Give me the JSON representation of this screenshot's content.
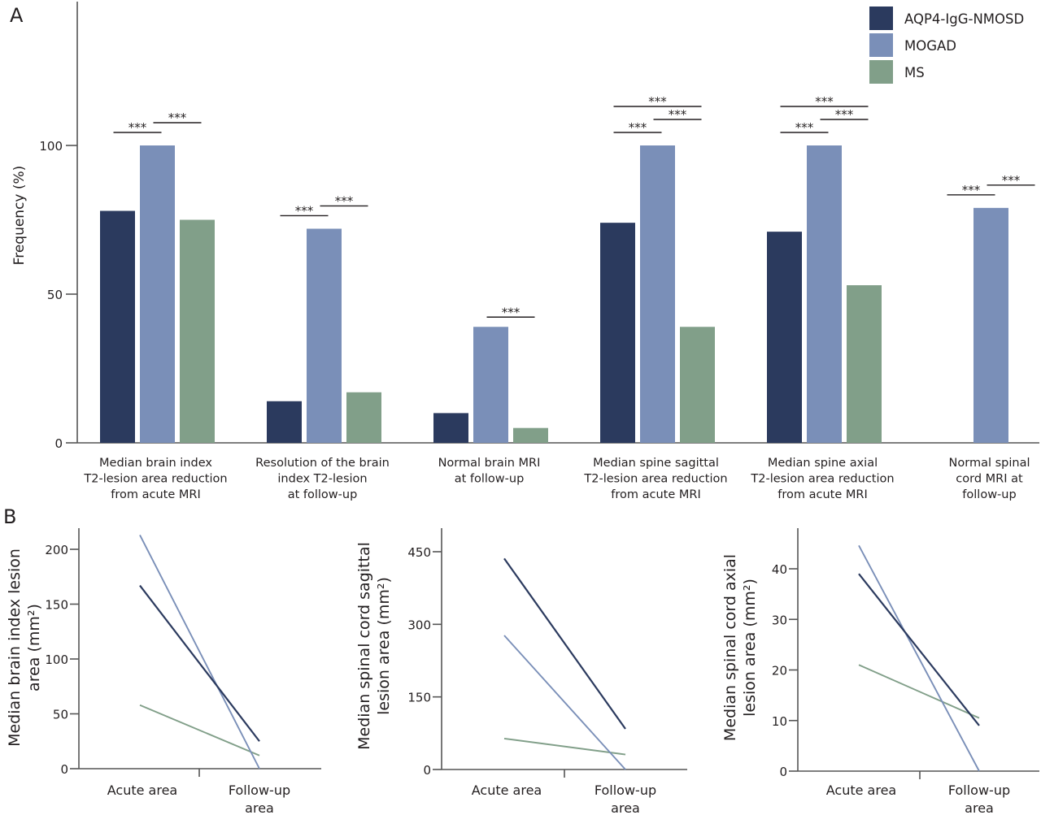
{
  "panel_labels": {
    "a": "A",
    "b": "B"
  },
  "colors": {
    "AQP4-IgG-NMOSD": "#2b3a5e",
    "MOGAD": "#7a8fb8",
    "MS": "#819f89",
    "axis": "#555555",
    "text": "#231f20"
  },
  "legend": {
    "placement": "top-right",
    "entries": [
      {
        "label": "AQP4-IgG-NMOSD",
        "color_key": "AQP4-IgG-NMOSD"
      },
      {
        "label": "MOGAD",
        "color_key": "MOGAD"
      },
      {
        "label": "MS",
        "color_key": "MS"
      }
    ]
  },
  "chart_data": [
    {
      "panel": "A",
      "type": "bar",
      "title": "",
      "xlabel": "",
      "ylabel": "Frequency (%)",
      "ylim": [
        0,
        148
      ],
      "yticks": [
        0,
        50,
        100
      ],
      "grid": false,
      "legend": "top-right",
      "categories": [
        [
          "Median brain index",
          "T2-lesion  area reduction",
          "from acute MRI"
        ],
        [
          "Resolution of the brain",
          "index T2-lesion",
          "at follow-up"
        ],
        [
          "Normal brain MRI",
          "at follow-up"
        ],
        [
          "Median spine sagittal",
          "T2-lesion area reduction",
          "from acute MRI"
        ],
        [
          "Median spine axial",
          "T2-lesion area reduction",
          "from acute MRI"
        ],
        [
          "Normal spinal",
          "cord MRI at",
          "follow-up"
        ]
      ],
      "series": [
        {
          "name": "AQP4-IgG-NMOSD",
          "values": [
            78,
            14,
            10,
            74,
            71,
            0
          ]
        },
        {
          "name": "MOGAD",
          "values": [
            100,
            72,
            39,
            100,
            100,
            79
          ]
        },
        {
          "name": "MS",
          "values": [
            75,
            17,
            5,
            39,
            53,
            0
          ]
        }
      ],
      "annotations": [
        {
          "category": 0,
          "text": "***",
          "from": "AQP4-IgG-NMOSD",
          "to": "MOGAD",
          "level": 0
        },
        {
          "category": 0,
          "text": "***",
          "from": "MOGAD",
          "to": "MS",
          "level": 1
        },
        {
          "category": 1,
          "text": "***",
          "from": "AQP4-IgG-NMOSD",
          "to": "MOGAD",
          "level": 0
        },
        {
          "category": 1,
          "text": "***",
          "from": "MOGAD",
          "to": "MS",
          "level": 1
        },
        {
          "category": 2,
          "text": "***",
          "from": "MOGAD",
          "to": "MS",
          "level": 0
        },
        {
          "category": 3,
          "text": "***",
          "from": "AQP4-IgG-NMOSD",
          "to": "MOGAD",
          "level": 0
        },
        {
          "category": 3,
          "text": "***",
          "from": "MOGAD",
          "to": "MS",
          "level": 1
        },
        {
          "category": 3,
          "text": "***",
          "from": "AQP4-IgG-NMOSD",
          "to": "MS",
          "level": 2
        },
        {
          "category": 4,
          "text": "***",
          "from": "AQP4-IgG-NMOSD",
          "to": "MOGAD",
          "level": 0
        },
        {
          "category": 4,
          "text": "***",
          "from": "MOGAD",
          "to": "MS",
          "level": 1
        },
        {
          "category": 4,
          "text": "***",
          "from": "AQP4-IgG-NMOSD",
          "to": "MS",
          "level": 2
        },
        {
          "category": 5,
          "text": "***",
          "from": "AQP4-IgG-NMOSD",
          "to": "MOGAD",
          "level": 0
        },
        {
          "category": 5,
          "text": "***",
          "from": "MOGAD",
          "to": "MS",
          "level": 1
        }
      ]
    },
    {
      "panel": "B1",
      "type": "line",
      "title": "",
      "ylabel": [
        "Median brain index lesion",
        "area (mm²)"
      ],
      "x": [
        [
          "Acute area"
        ],
        [
          "Follow-up",
          "area"
        ]
      ],
      "ylim": [
        0,
        220
      ],
      "yticks": [
        0,
        50,
        100,
        150,
        200
      ],
      "grid": false,
      "series": [
        {
          "name": "AQP4-IgG-NMOSD",
          "values": [
            167,
            25
          ]
        },
        {
          "name": "MOGAD",
          "values": [
            213,
            0
          ]
        },
        {
          "name": "MS",
          "values": [
            58,
            12
          ]
        }
      ]
    },
    {
      "panel": "B2",
      "type": "line",
      "title": "",
      "ylabel": [
        "Median spinal cord sagittal",
        "lesion area (mm²)"
      ],
      "x": [
        [
          "Acute area"
        ],
        [
          "Follow-up",
          "area"
        ]
      ],
      "ylim": [
        0,
        500
      ],
      "yticks": [
        0,
        150,
        300,
        450
      ],
      "grid": false,
      "series": [
        {
          "name": "AQP4-IgG-NMOSD",
          "values": [
            436,
            84
          ]
        },
        {
          "name": "MOGAD",
          "values": [
            277,
            0
          ]
        },
        {
          "name": "MS",
          "values": [
            64,
            31
          ]
        }
      ]
    },
    {
      "panel": "B3",
      "type": "line",
      "title": "",
      "ylabel": [
        "Median spinal cord axial",
        "lesion area (mm²)"
      ],
      "x": [
        [
          "Acute area"
        ],
        [
          "Follow-up",
          "area"
        ]
      ],
      "ylim": [
        0,
        48
      ],
      "yticks": [
        0,
        10,
        20,
        30,
        40
      ],
      "grid": false,
      "series": [
        {
          "name": "AQP4-IgG-NMOSD",
          "values": [
            39,
            9
          ]
        },
        {
          "name": "MOGAD",
          "values": [
            44.6,
            0
          ]
        },
        {
          "name": "MS",
          "values": [
            21,
            10.5
          ]
        }
      ]
    }
  ]
}
